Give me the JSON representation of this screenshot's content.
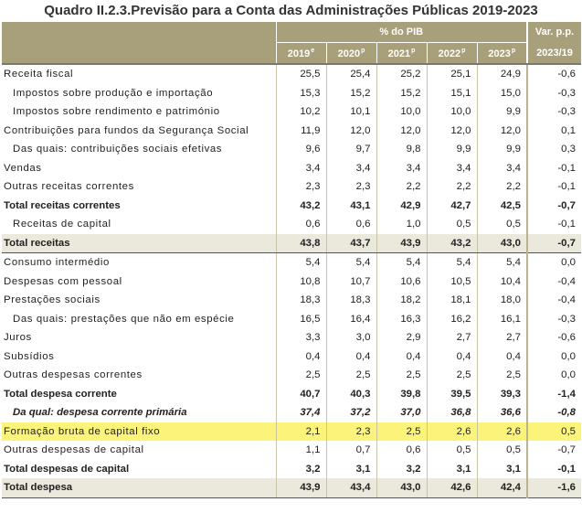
{
  "title": "Quadro II.2.3.Previsão para a Conta das Administrações Públicas 2019-2023",
  "header": {
    "pct_pib": "% do PIB",
    "var_pp": "Var. p.p.",
    "years": [
      {
        "year": "2019",
        "sup": "e"
      },
      {
        "year": "2020",
        "sup": "p"
      },
      {
        "year": "2021",
        "sup": "p"
      },
      {
        "year": "2022",
        "sup": "p"
      },
      {
        "year": "2023",
        "sup": "p"
      }
    ],
    "var_period": "2023/19"
  },
  "rows": [
    {
      "label": "Receita fiscal",
      "values": [
        "25,5",
        "25,4",
        "25,2",
        "25,1",
        "24,9"
      ],
      "var": "-0,6",
      "style": "normal",
      "indent": false
    },
    {
      "label": "Impostos sobre produção e importação",
      "values": [
        "15,3",
        "15,2",
        "15,2",
        "15,1",
        "15,0"
      ],
      "var": "-0,3",
      "style": "normal",
      "indent": true
    },
    {
      "label": "Impostos sobre rendimento e património",
      "values": [
        "10,2",
        "10,1",
        "10,0",
        "10,0",
        "9,9"
      ],
      "var": "-0,3",
      "style": "normal",
      "indent": true
    },
    {
      "label": "Contribuições para fundos da Segurança Social",
      "values": [
        "11,9",
        "12,0",
        "12,0",
        "12,0",
        "12,0"
      ],
      "var": "0,1",
      "style": "normal",
      "indent": false
    },
    {
      "label": "Das quais: contribuições sociais efetivas",
      "values": [
        "9,6",
        "9,7",
        "9,8",
        "9,9",
        "9,9"
      ],
      "var": "0,3",
      "style": "normal",
      "indent": true
    },
    {
      "label": "Vendas",
      "values": [
        "3,4",
        "3,4",
        "3,4",
        "3,4",
        "3,4"
      ],
      "var": "-0,1",
      "style": "normal",
      "indent": false
    },
    {
      "label": "Outras receitas correntes",
      "values": [
        "2,3",
        "2,3",
        "2,2",
        "2,2",
        "2,2"
      ],
      "var": "-0,1",
      "style": "normal",
      "indent": false
    },
    {
      "label": "Total receitas correntes",
      "values": [
        "43,2",
        "43,1",
        "42,9",
        "42,7",
        "42,5"
      ],
      "var": "-0,7",
      "style": "bold",
      "indent": false
    },
    {
      "label": "Receitas de capital",
      "values": [
        "0,6",
        "0,6",
        "1,0",
        "0,5",
        "0,5"
      ],
      "var": "-0,1",
      "style": "normal",
      "indent": true
    },
    {
      "label": "Total receitas",
      "values": [
        "43,8",
        "43,7",
        "43,9",
        "43,2",
        "43,0"
      ],
      "var": "-0,7",
      "style": "bold-shaded-sep",
      "indent": false
    },
    {
      "label": "Consumo intermédio",
      "values": [
        "5,4",
        "5,4",
        "5,4",
        "5,4",
        "5,4"
      ],
      "var": "0,0",
      "style": "normal",
      "indent": false
    },
    {
      "label": "Despesas com pessoal",
      "values": [
        "10,8",
        "10,7",
        "10,6",
        "10,5",
        "10,4"
      ],
      "var": "-0,4",
      "style": "normal",
      "indent": false
    },
    {
      "label": "Prestações sociais",
      "values": [
        "18,3",
        "18,3",
        "18,2",
        "18,1",
        "18,0"
      ],
      "var": "-0,4",
      "style": "normal",
      "indent": false
    },
    {
      "label": "Das quais: prestações que não em espécie",
      "values": [
        "16,5",
        "16,4",
        "16,3",
        "16,2",
        "16,1"
      ],
      "var": "-0,3",
      "style": "normal",
      "indent": true
    },
    {
      "label": "Juros",
      "values": [
        "3,3",
        "3,0",
        "2,9",
        "2,7",
        "2,7"
      ],
      "var": "-0,6",
      "style": "normal",
      "indent": false
    },
    {
      "label": "Subsídios",
      "values": [
        "0,4",
        "0,4",
        "0,4",
        "0,4",
        "0,4"
      ],
      "var": "0,0",
      "style": "normal",
      "indent": false
    },
    {
      "label": "Outras despesas correntes",
      "values": [
        "2,5",
        "2,5",
        "2,5",
        "2,5",
        "2,5"
      ],
      "var": "0,0",
      "style": "normal",
      "indent": false
    },
    {
      "label": "Total despesa corrente",
      "values": [
        "40,7",
        "40,3",
        "39,8",
        "39,5",
        "39,3"
      ],
      "var": "-1,4",
      "style": "bold",
      "indent": false
    },
    {
      "label": "Da qual: despesa corrente primária",
      "values": [
        "37,4",
        "37,2",
        "37,0",
        "36,8",
        "36,6"
      ],
      "var": "-0,8",
      "style": "italic",
      "indent": true
    },
    {
      "label": "Formação bruta de capital fixo",
      "values": [
        "2,1",
        "2,3",
        "2,5",
        "2,6",
        "2,6"
      ],
      "var": "0,5",
      "style": "highlight",
      "indent": false
    },
    {
      "label": "Outras despesas de capital",
      "values": [
        "1,1",
        "0,7",
        "0,6",
        "0,5",
        "0,5"
      ],
      "var": "-0,7",
      "style": "normal",
      "indent": false
    },
    {
      "label": "Total despesas de capital",
      "values": [
        "3,2",
        "3,1",
        "3,2",
        "3,1",
        "3,1"
      ],
      "var": "-0,1",
      "style": "bold",
      "indent": false
    },
    {
      "label": "Total despesa",
      "values": [
        "43,9",
        "43,4",
        "43,0",
        "42,6",
        "42,4"
      ],
      "var": "-1,6",
      "style": "bold-shaded-last",
      "indent": false
    }
  ],
  "colors": {
    "header_bg": "#a8a07b",
    "shaded_row": "#ebe8dc",
    "highlight": "#fbf37a"
  }
}
